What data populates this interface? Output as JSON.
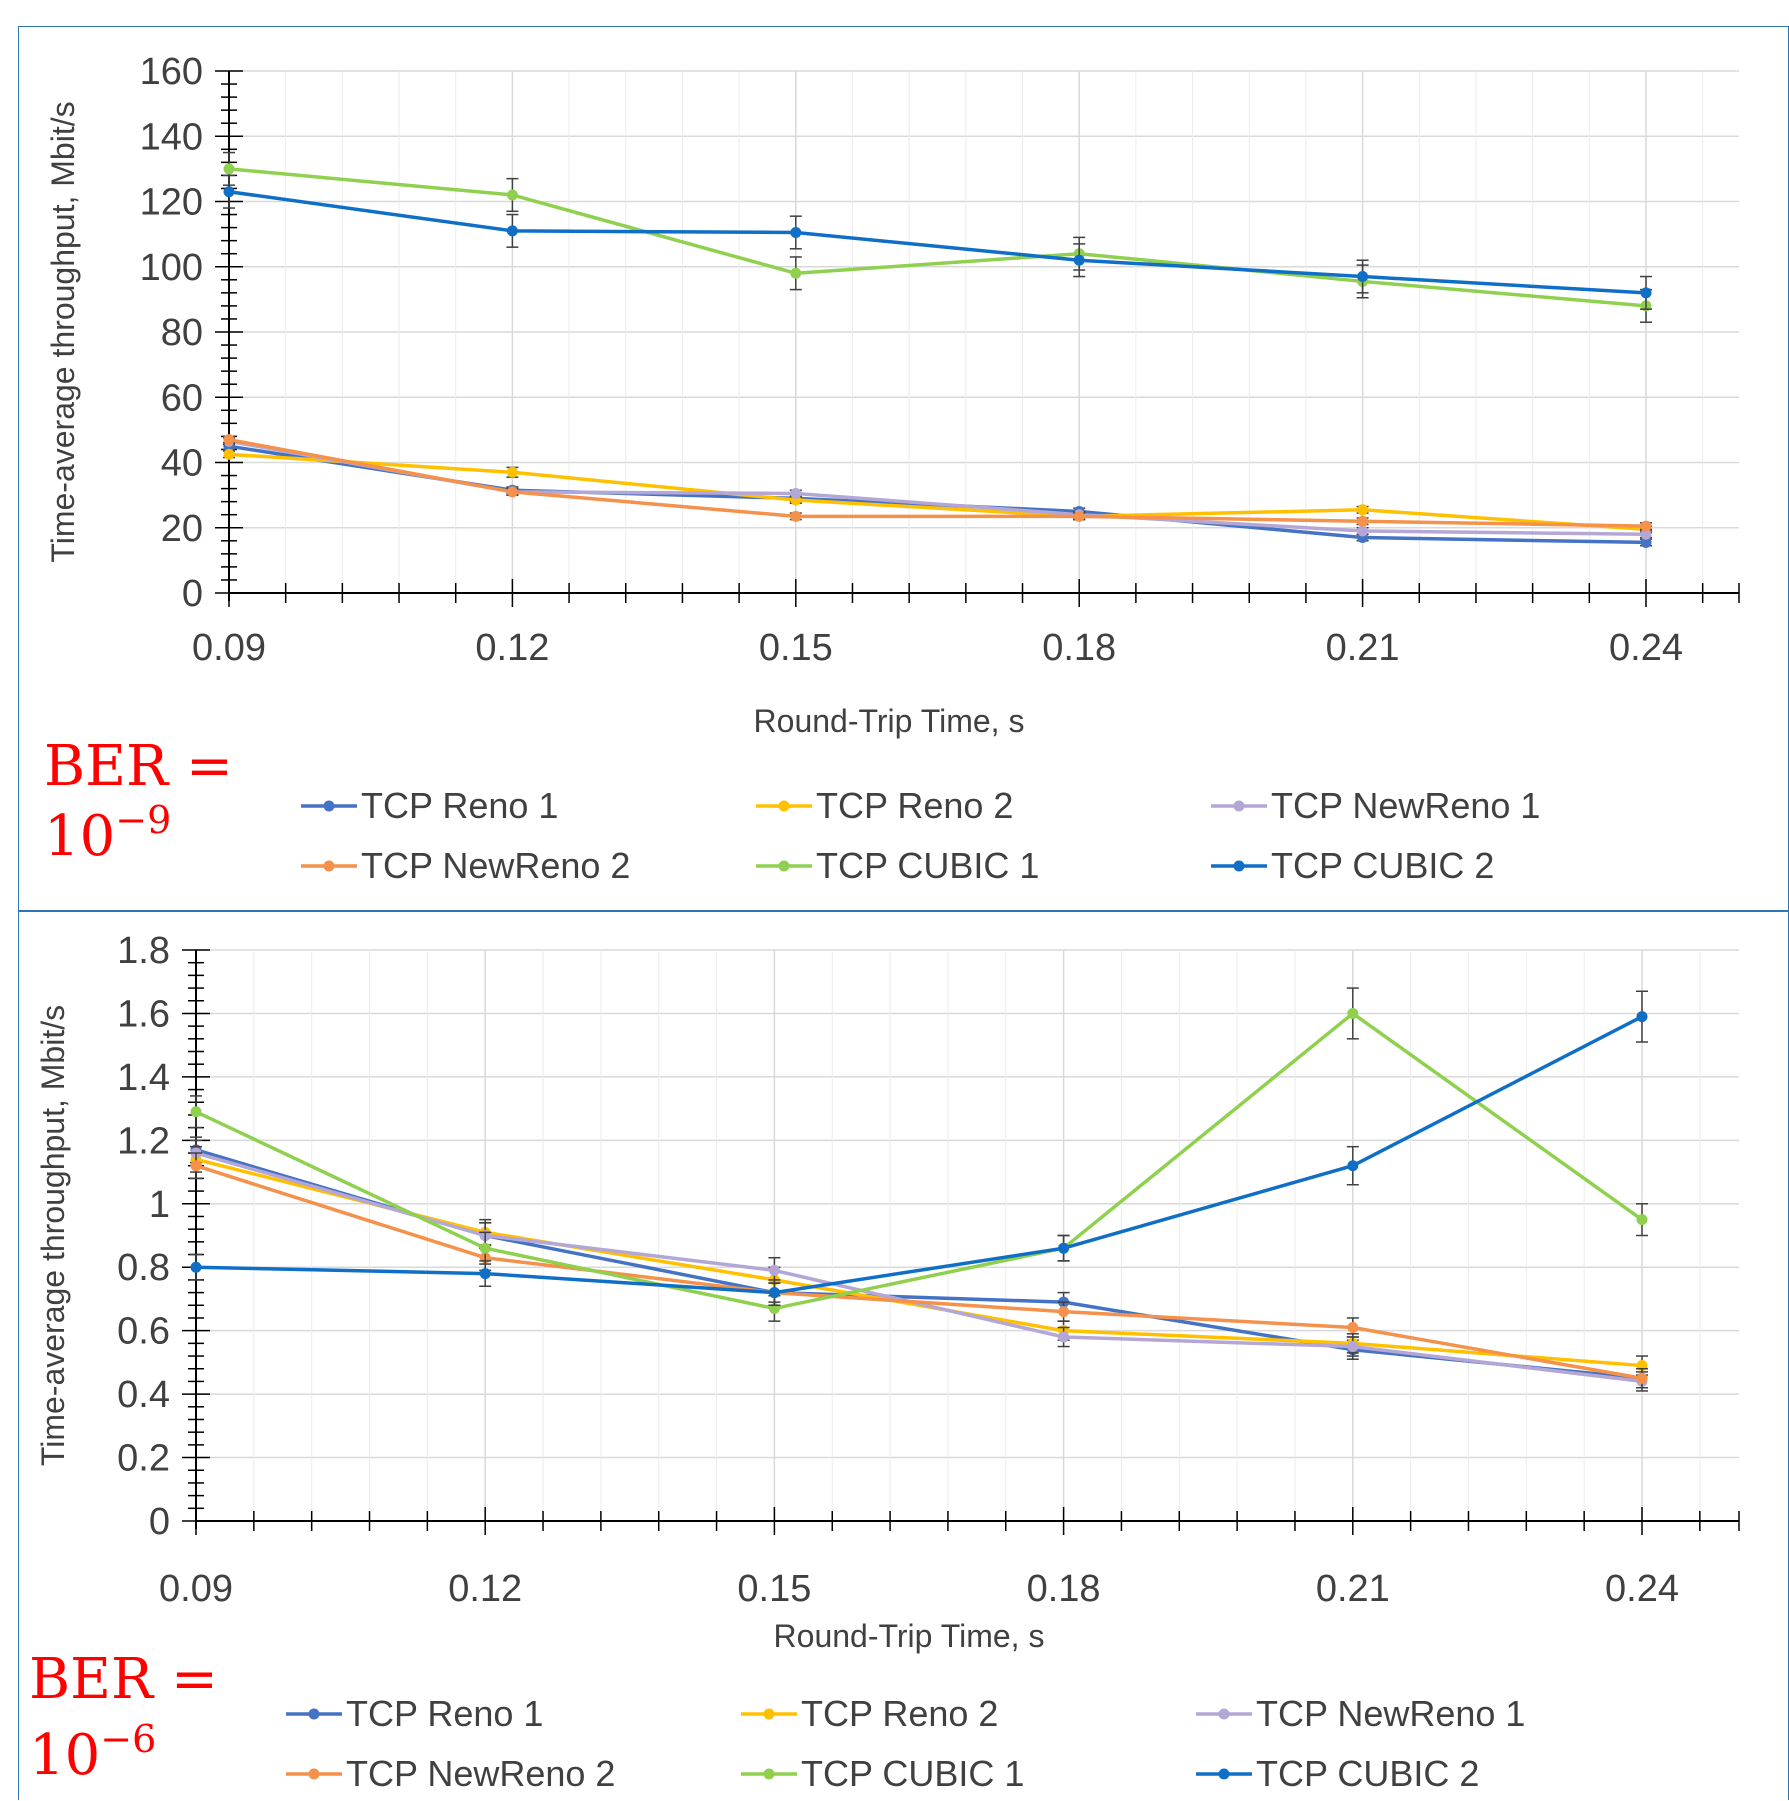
{
  "chart_data": [
    {
      "type": "line",
      "xlabel": "Round-Trip Time, s",
      "ylabel": "Time-average throughput, Mbit/s",
      "x": [
        0.09,
        0.12,
        0.15,
        0.18,
        0.21,
        0.24
      ],
      "x_ticks": [
        "0.09",
        "0.12",
        "0.15",
        "0.18",
        "0.21",
        "0.24"
      ],
      "y_ticks": [
        "0",
        "20",
        "40",
        "60",
        "80",
        "100",
        "120",
        "140",
        "160"
      ],
      "ylim": [
        0,
        160
      ],
      "grid": true,
      "legend_position": "bottom",
      "annotation": {
        "prefix": "BER =",
        "base": "10",
        "exponent": "−9"
      },
      "series": [
        {
          "name": "TCP Reno 1",
          "color": "#4472c4",
          "values": [
            45,
            31.5,
            29,
            25,
            17,
            15.5
          ],
          "err": [
            1,
            1,
            1,
            1,
            1,
            1
          ]
        },
        {
          "name": "TCP Reno 2",
          "color": "#ffc000",
          "values": [
            42.5,
            37,
            28.5,
            23.5,
            25.5,
            19.5
          ],
          "err": [
            1,
            1.5,
            1,
            1,
            1,
            1
          ]
        },
        {
          "name": "TCP NewReno 1",
          "color": "#b4a7d6",
          "values": [
            46.5,
            31,
            30.5,
            24,
            19,
            18
          ],
          "err": [
            1,
            1,
            1,
            1,
            1,
            1
          ]
        },
        {
          "name": "TCP NewReno 2",
          "color": "#f4914b",
          "values": [
            47,
            31,
            23.5,
            23.5,
            22,
            20.5
          ],
          "err": [
            1,
            1,
            1,
            1,
            1,
            1
          ]
        },
        {
          "name": "TCP CUBIC 1",
          "color": "#8fd14f",
          "values": [
            130,
            122,
            98,
            104,
            95.5,
            88
          ],
          "err": [
            5,
            5,
            5,
            5,
            5,
            5
          ]
        },
        {
          "name": "TCP CUBIC 2",
          "color": "#0f6fc6",
          "values": [
            123,
            111,
            110.5,
            102,
            97,
            92
          ],
          "err": [
            5,
            5,
            5,
            5,
            5,
            5
          ]
        }
      ]
    },
    {
      "type": "line",
      "xlabel": "Round-Trip Time, s",
      "ylabel": "Time-average throughput, Mbit/s",
      "x": [
        0.09,
        0.12,
        0.15,
        0.18,
        0.21,
        0.24
      ],
      "x_ticks": [
        "0.09",
        "0.12",
        "0.15",
        "0.18",
        "0.21",
        "0.24"
      ],
      "y_ticks": [
        "0",
        "0.2",
        "0.4",
        "0.6",
        "0.8",
        "1",
        "1.2",
        "1.4",
        "1.6",
        "1.8"
      ],
      "ylim": [
        0,
        1.8
      ],
      "grid": true,
      "legend_position": "bottom",
      "annotation": {
        "prefix": "BER =",
        "base": "10",
        "exponent": "−6"
      },
      "series": [
        {
          "name": "TCP Reno 1",
          "color": "#4472c4",
          "values": [
            1.17,
            0.9,
            0.72,
            0.69,
            0.54,
            0.45
          ],
          "err": [
            0.04,
            0.04,
            0.04,
            0.03,
            0.03,
            0.03
          ]
        },
        {
          "name": "TCP Reno 2",
          "color": "#ffc000",
          "values": [
            1.14,
            0.91,
            0.76,
            0.6,
            0.56,
            0.49
          ],
          "err": [
            0.04,
            0.04,
            0.04,
            0.03,
            0.03,
            0.03
          ]
        },
        {
          "name": "TCP NewReno 1",
          "color": "#b4a7d6",
          "values": [
            1.16,
            0.9,
            0.79,
            0.58,
            0.55,
            0.44
          ],
          "err": [
            0.04,
            0.04,
            0.04,
            0.03,
            0.03,
            0.03
          ]
        },
        {
          "name": "TCP NewReno 2",
          "color": "#f4914b",
          "values": [
            1.12,
            0.83,
            0.72,
            0.66,
            0.61,
            0.45
          ],
          "err": [
            0.04,
            0.04,
            0.03,
            0.03,
            0.03,
            0.03
          ]
        },
        {
          "name": "TCP CUBIC 1",
          "color": "#8fd14f",
          "values": [
            1.29,
            0.86,
            0.67,
            0.86,
            1.6,
            0.95
          ],
          "err": [
            0.05,
            0.05,
            0.04,
            0.04,
            0.08,
            0.05
          ]
        },
        {
          "name": "TCP CUBIC 2",
          "color": "#0f6fc6",
          "values": [
            0.8,
            0.78,
            0.72,
            0.86,
            1.12,
            1.59
          ],
          "err": [
            0.04,
            0.04,
            0.04,
            0.04,
            0.06,
            0.08
          ]
        }
      ]
    }
  ]
}
